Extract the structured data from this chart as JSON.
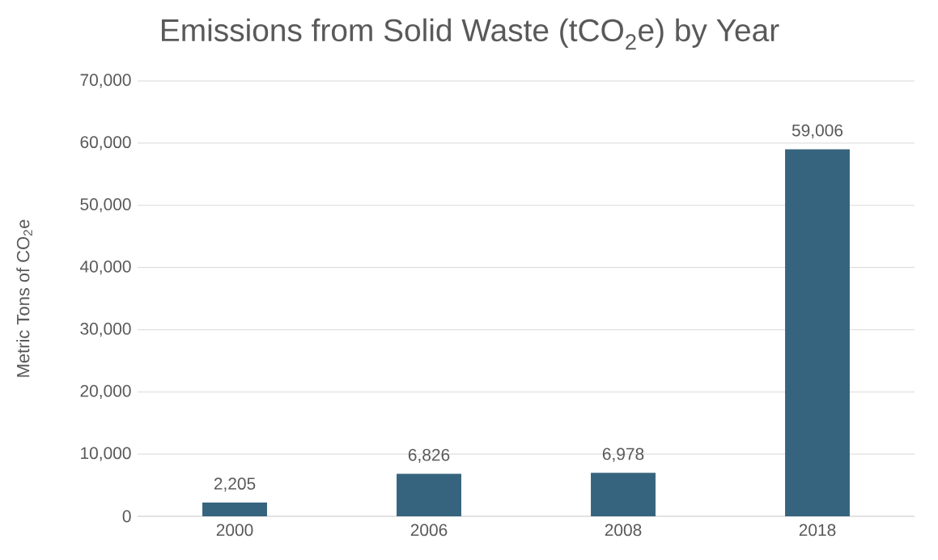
{
  "chart_data": {
    "type": "bar",
    "title": "Emissions from Solid Waste (tCO$_{2}$e) by Year",
    "ylabel": "Metric Tons of CO$_{2}$e",
    "categories": [
      "2000",
      "2006",
      "2008",
      "2018"
    ],
    "values": [
      2205,
      6826,
      6978,
      59006
    ],
    "value_labels": [
      "2,205",
      "6,826",
      "6,978",
      "59,006"
    ],
    "color": "#36647e",
    "ylim": [
      0,
      70000
    ],
    "yticks": [
      {
        "value": 0,
        "label": "0"
      },
      {
        "value": 10000,
        "label": "10,000"
      },
      {
        "value": 20000,
        "label": "20,000"
      },
      {
        "value": 30000,
        "label": "30,000"
      },
      {
        "value": 40000,
        "label": "40,000"
      },
      {
        "value": 50000,
        "label": "50,000"
      },
      {
        "value": 60000,
        "label": "60,000"
      },
      {
        "value": 70000,
        "label": "70,000"
      }
    ],
    "grid": "y"
  }
}
